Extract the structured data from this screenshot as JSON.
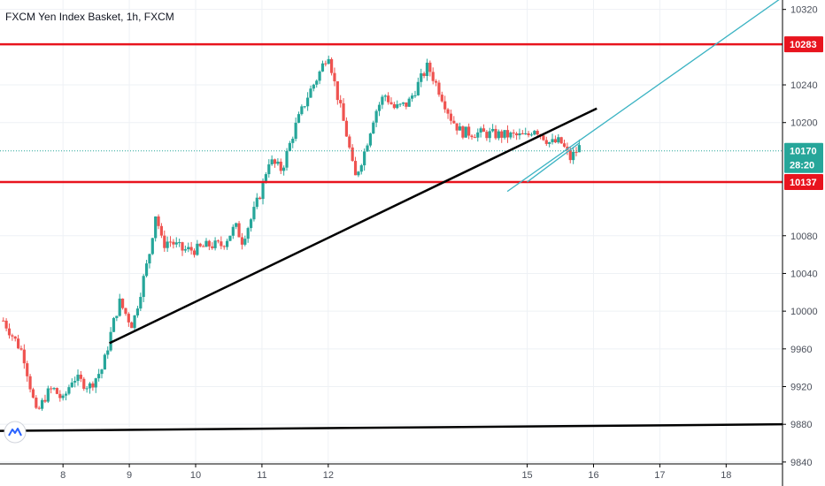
{
  "header": {
    "title": "FXCM Yen Index Basket, 1h, FXCM"
  },
  "colors": {
    "up": "#26a69a",
    "down": "#ef5350",
    "resistance": "#e8141e",
    "trend": "#000000",
    "channel": "#3bb3c3",
    "price_line": "#26a69a",
    "grid": "#eef1f5",
    "axis_bg": "#ffffff"
  },
  "chart_data": {
    "type": "candlestick",
    "title": "FXCM Yen Index Basket, 1h, FXCM",
    "x_tick_labels": [
      "8",
      "9",
      "10",
      "11",
      "12",
      "15",
      "16",
      "17",
      "18"
    ],
    "x_ticks": [
      8,
      9,
      10,
      11,
      12,
      15,
      16,
      17,
      18
    ],
    "y_tick_labels": [
      "10320",
      "10240",
      "10200",
      "10080",
      "10040",
      "10000",
      "9960",
      "9920",
      "9880",
      "9840"
    ],
    "y_ticks": [
      10320,
      10240,
      10200,
      10080,
      10040,
      10000,
      9960,
      9920,
      9880,
      9840
    ],
    "ylim": [
      9838,
      10330
    ],
    "xlim": [
      7.05,
      18.85
    ],
    "grid": true,
    "price_labels": [
      {
        "text": "10283",
        "value": 10283,
        "color": "#e8141e"
      },
      {
        "text": "10170",
        "value": 10170,
        "color": "#26a69a"
      },
      {
        "text": "28:20",
        "value": 10155,
        "color": "#26a69a"
      },
      {
        "text": "10137",
        "value": 10137,
        "color": "#e8141e"
      }
    ],
    "horizontal_lines": [
      {
        "name": "resistance",
        "value": 10283,
        "color": "#e8141e"
      },
      {
        "name": "support",
        "value": 10137,
        "color": "#e8141e"
      },
      {
        "name": "last-price",
        "value": 10170,
        "color": "#26a69a",
        "dotted": true
      }
    ],
    "trend_lines": [
      {
        "name": "rising-support",
        "from": [
          8.7,
          9966
        ],
        "to": [
          16.05,
          10215
        ],
        "color": "#000000"
      },
      {
        "name": "base-line",
        "from": [
          7.05,
          9873
        ],
        "to": [
          18.85,
          9880
        ],
        "color": "#000000"
      },
      {
        "name": "channel-line",
        "from": [
          14.7,
          10127
        ],
        "to": [
          18.85,
          10333
        ],
        "color": "#3bb3c3"
      },
      {
        "name": "channel-line-lower",
        "from": [
          15.0,
          10137
        ],
        "to": [
          15.78,
          10178
        ],
        "color": "#3bb3c3"
      }
    ],
    "close_path": [
      [
        7.1,
        9990
      ],
      [
        7.4,
        9955
      ],
      [
        7.6,
        9890
      ],
      [
        7.75,
        9912
      ],
      [
        7.85,
        9918
      ],
      [
        8.0,
        9905
      ],
      [
        8.15,
        9930
      ],
      [
        8.4,
        9920
      ],
      [
        8.6,
        9940
      ],
      [
        8.75,
        9985
      ],
      [
        8.85,
        10010
      ],
      [
        9.0,
        9990
      ],
      [
        9.05,
        9985
      ],
      [
        9.2,
        10030
      ],
      [
        9.3,
        10060
      ],
      [
        9.4,
        10105
      ],
      [
        9.5,
        10070
      ],
      [
        9.6,
        10075
      ],
      [
        9.8,
        10065
      ],
      [
        10.0,
        10065
      ],
      [
        10.2,
        10070
      ],
      [
        10.4,
        10070
      ],
      [
        10.6,
        10090
      ],
      [
        10.7,
        10075
      ],
      [
        10.85,
        10100
      ],
      [
        11.0,
        10130
      ],
      [
        11.1,
        10160
      ],
      [
        11.3,
        10150
      ],
      [
        11.5,
        10195
      ],
      [
        11.7,
        10230
      ],
      [
        11.85,
        10250
      ],
      [
        12.0,
        10275
      ],
      [
        12.1,
        10240
      ],
      [
        12.2,
        10210
      ],
      [
        12.3,
        10180
      ],
      [
        12.4,
        10140
      ],
      [
        12.55,
        10170
      ],
      [
        12.7,
        10210
      ],
      [
        12.85,
        10230
      ],
      [
        13.0,
        10215
      ],
      [
        13.2,
        10220
      ],
      [
        13.35,
        10240
      ],
      [
        13.5,
        10260
      ],
      [
        13.7,
        10230
      ],
      [
        13.85,
        10205
      ],
      [
        14.0,
        10190
      ],
      [
        15.0,
        10185
      ],
      [
        15.1,
        10195
      ],
      [
        15.25,
        10185
      ],
      [
        15.35,
        10178
      ],
      [
        15.5,
        10180
      ],
      [
        15.65,
        10162
      ],
      [
        15.8,
        10175
      ]
    ]
  }
}
